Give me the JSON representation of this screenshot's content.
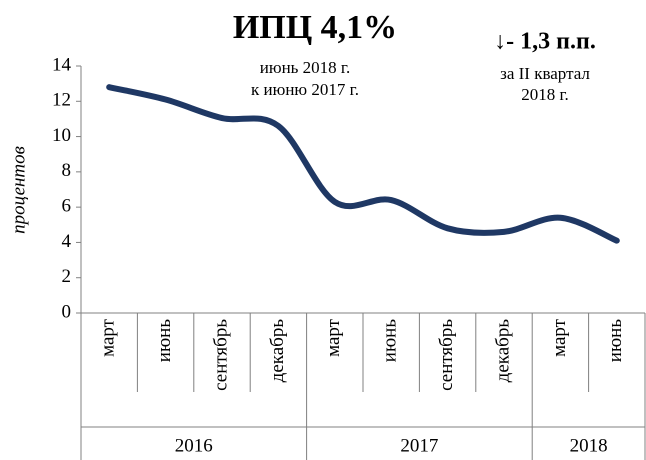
{
  "chart_data": {
    "type": "line",
    "title": "ИПЦ  4,1%",
    "subtitle": [
      "июнь 2018 г.",
      "к июню 2017 г."
    ],
    "annotation": {
      "title": "↓- 1,3 п.п.",
      "lines": [
        "за II квартал",
        "2018 г."
      ]
    },
    "y_label": "процентов",
    "groups": [
      {
        "label": "2016",
        "categories": [
          "март",
          "июнь",
          "сентябрь",
          "декабрь"
        ]
      },
      {
        "label": "2017",
        "categories": [
          "март",
          "июнь",
          "сентябрь",
          "декабрь"
        ]
      },
      {
        "label": "2018",
        "categories": [
          "март",
          "июнь"
        ]
      }
    ],
    "values": [
      12.8,
      12.1,
      11.05,
      10.6,
      6.3,
      6.4,
      4.8,
      4.6,
      5.4,
      4.1
    ],
    "color": "#1f3864",
    "ylim": [
      0,
      14
    ],
    "yticks": [
      0,
      2,
      4,
      6,
      8,
      10,
      12,
      14
    ]
  }
}
